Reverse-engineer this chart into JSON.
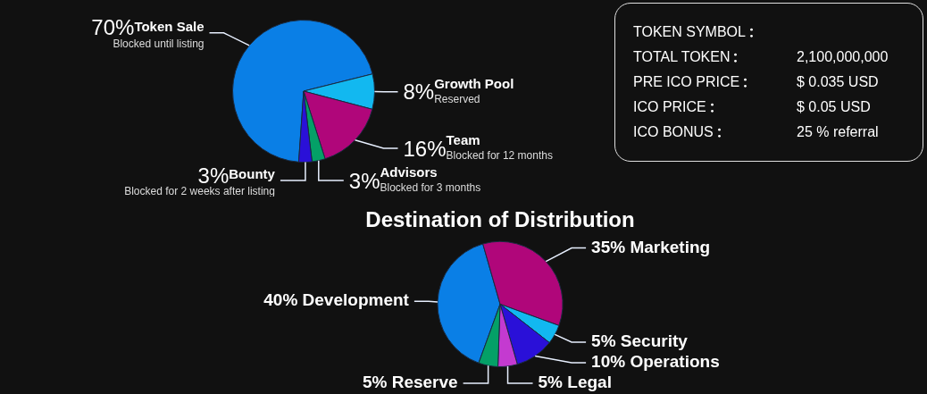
{
  "chart_data": [
    {
      "type": "pie",
      "categories": [
        "Token Sale",
        "Growth Pool",
        "Team",
        "Advisors",
        "Bounty"
      ],
      "values": [
        70,
        8,
        16,
        3,
        3
      ],
      "value_labels": [
        "70%",
        "8%",
        "16%",
        "3%",
        "3%"
      ],
      "colors": [
        "#0a7fe6",
        "#12b8f0",
        "#b0067a",
        "#04a067",
        "#2a10d8"
      ],
      "annotations": [
        "Blocked until listing",
        "Reserved",
        "Blocked for 12 months",
        "Blocked for 3 months",
        "Blocked for 2 weeks after listing"
      ]
    },
    {
      "type": "other",
      "categories": [
        "TOKEN SYMBOL",
        "TOTAL TOKEN",
        "PRE ICO PRICE",
        "ICO PRICE",
        "ICO BONUS"
      ],
      "value_labels": [
        null,
        "2,100,000,000",
        "$ 0.035 USD",
        "$ 0.05 USD",
        "25 % referral"
      ]
    },
    {
      "type": "pie",
      "title": "Destination of Distribution",
      "categories": [
        "Development",
        "Marketing",
        "Security",
        "Operations",
        "Legal",
        "Reserve"
      ],
      "values": [
        40,
        35,
        5,
        10,
        5,
        5
      ],
      "value_labels": [
        "40%",
        "35%",
        "5%",
        "10%",
        "5%",
        "5%"
      ],
      "colors": [
        "#0a7fe6",
        "#b0067a",
        "#12b8f0",
        "#2a10d8",
        "#c43ad0",
        "#04a067"
      ]
    }
  ]
}
